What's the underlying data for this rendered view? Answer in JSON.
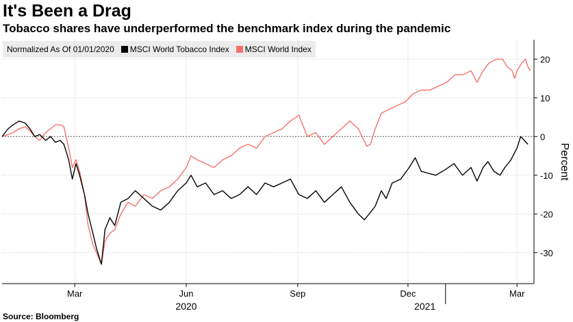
{
  "title": "It's Been a Drag",
  "subtitle": "Tobacco shares have underperformed the benchmark index during the pandemic",
  "source": "Source: Bloomberg",
  "legend": {
    "note": "Normalized As Of 01/01/2020",
    "items": [
      {
        "label": "MSCI World Tobacco Index",
        "color": "#000000"
      },
      {
        "label": "MSCI World Index",
        "color": "#f4716b"
      }
    ]
  },
  "chart_data": {
    "type": "line",
    "ylabel": "Percent",
    "ylim": [
      -38,
      25
    ],
    "yticks": [
      20,
      10,
      0,
      -10,
      -20,
      -30
    ],
    "xlim": [
      "2020-01-01",
      "2021-03-15"
    ],
    "xticks": [
      {
        "date": "2020-03-01",
        "label": "Mar"
      },
      {
        "date": "2020-06-01",
        "label": "Jun"
      },
      {
        "date": "2020-09-01",
        "label": "Sep"
      },
      {
        "date": "2020-12-01",
        "label": "Dec"
      },
      {
        "date": "2021-03-01",
        "label": "Mar"
      }
    ],
    "year_labels": [
      {
        "date": "2020-06-01",
        "label": "2020"
      },
      {
        "date": "2020-12-15",
        "label": "2021"
      }
    ],
    "zero_line": true,
    "grid": true,
    "series": [
      {
        "name": "MSCI World Tobacco Index",
        "color": "#000000",
        "points": [
          [
            "2020-01-01",
            0
          ],
          [
            "2020-01-06",
            2
          ],
          [
            "2020-01-10",
            3
          ],
          [
            "2020-01-15",
            4
          ],
          [
            "2020-01-20",
            3.5
          ],
          [
            "2020-01-24",
            2
          ],
          [
            "2020-01-28",
            0
          ],
          [
            "2020-02-01",
            0.5
          ],
          [
            "2020-02-06",
            -1
          ],
          [
            "2020-02-10",
            0
          ],
          [
            "2020-02-14",
            -1.5
          ],
          [
            "2020-02-18",
            -1
          ],
          [
            "2020-02-21",
            -2
          ],
          [
            "2020-02-25",
            -6
          ],
          [
            "2020-02-28",
            -11
          ],
          [
            "2020-03-02",
            -7
          ],
          [
            "2020-03-05",
            -10
          ],
          [
            "2020-03-09",
            -15
          ],
          [
            "2020-03-12",
            -20
          ],
          [
            "2020-03-16",
            -25
          ],
          [
            "2020-03-19",
            -29
          ],
          [
            "2020-03-23",
            -33
          ],
          [
            "2020-03-26",
            -24
          ],
          [
            "2020-03-30",
            -21
          ],
          [
            "2020-04-03",
            -23
          ],
          [
            "2020-04-08",
            -17
          ],
          [
            "2020-04-14",
            -16
          ],
          [
            "2020-04-20",
            -14
          ],
          [
            "2020-04-27",
            -16
          ],
          [
            "2020-05-04",
            -18
          ],
          [
            "2020-05-11",
            -19
          ],
          [
            "2020-05-18",
            -17
          ],
          [
            "2020-05-25",
            -14
          ],
          [
            "2020-06-01",
            -12
          ],
          [
            "2020-06-05",
            -10
          ],
          [
            "2020-06-10",
            -13
          ],
          [
            "2020-06-17",
            -12
          ],
          [
            "2020-06-24",
            -15
          ],
          [
            "2020-07-01",
            -14
          ],
          [
            "2020-07-08",
            -16
          ],
          [
            "2020-07-15",
            -15
          ],
          [
            "2020-07-22",
            -13
          ],
          [
            "2020-07-29",
            -15
          ],
          [
            "2020-08-05",
            -12
          ],
          [
            "2020-08-12",
            -13
          ],
          [
            "2020-08-19",
            -12
          ],
          [
            "2020-08-26",
            -11
          ],
          [
            "2020-09-02",
            -15
          ],
          [
            "2020-09-09",
            -16
          ],
          [
            "2020-09-16",
            -14
          ],
          [
            "2020-09-23",
            -17
          ],
          [
            "2020-09-30",
            -15
          ],
          [
            "2020-10-07",
            -13
          ],
          [
            "2020-10-14",
            -17
          ],
          [
            "2020-10-21",
            -20
          ],
          [
            "2020-10-26",
            -21.5
          ],
          [
            "2020-10-30",
            -20
          ],
          [
            "2020-11-04",
            -18
          ],
          [
            "2020-11-09",
            -14
          ],
          [
            "2020-11-13",
            -16
          ],
          [
            "2020-11-18",
            -12
          ],
          [
            "2020-11-25",
            -11
          ],
          [
            "2020-12-02",
            -8
          ],
          [
            "2020-12-07",
            -5.5
          ],
          [
            "2020-12-12",
            -9
          ],
          [
            "2020-12-18",
            -9.5
          ],
          [
            "2020-12-24",
            -10
          ],
          [
            "2021-01-01",
            -8.5
          ],
          [
            "2021-01-08",
            -7
          ],
          [
            "2021-01-15",
            -10
          ],
          [
            "2021-01-22",
            -8
          ],
          [
            "2021-01-27",
            -11.5
          ],
          [
            "2021-02-01",
            -8
          ],
          [
            "2021-02-05",
            -6.5
          ],
          [
            "2021-02-10",
            -9
          ],
          [
            "2021-02-15",
            -10
          ],
          [
            "2021-02-19",
            -8
          ],
          [
            "2021-02-24",
            -6
          ],
          [
            "2021-03-01",
            -3
          ],
          [
            "2021-03-04",
            0
          ],
          [
            "2021-03-07",
            -1
          ],
          [
            "2021-03-10",
            -2
          ]
        ]
      },
      {
        "name": "MSCI World Index",
        "color": "#f4716b",
        "points": [
          [
            "2020-01-01",
            0
          ],
          [
            "2020-01-06",
            0.5
          ],
          [
            "2020-01-10",
            1
          ],
          [
            "2020-01-15",
            2
          ],
          [
            "2020-01-20",
            2.5
          ],
          [
            "2020-01-24",
            1.5
          ],
          [
            "2020-01-28",
            0
          ],
          [
            "2020-02-01",
            -1
          ],
          [
            "2020-02-06",
            1
          ],
          [
            "2020-02-10",
            2
          ],
          [
            "2020-02-14",
            3
          ],
          [
            "2020-02-18",
            3
          ],
          [
            "2020-02-21",
            2.5
          ],
          [
            "2020-02-25",
            -3
          ],
          [
            "2020-02-28",
            -8
          ],
          [
            "2020-03-02",
            -6
          ],
          [
            "2020-03-05",
            -9
          ],
          [
            "2020-03-09",
            -15
          ],
          [
            "2020-03-12",
            -23
          ],
          [
            "2020-03-16",
            -28
          ],
          [
            "2020-03-19",
            -30
          ],
          [
            "2020-03-23",
            -33
          ],
          [
            "2020-03-26",
            -27
          ],
          [
            "2020-03-30",
            -25
          ],
          [
            "2020-04-03",
            -24
          ],
          [
            "2020-04-08",
            -20
          ],
          [
            "2020-04-14",
            -17
          ],
          [
            "2020-04-20",
            -18
          ],
          [
            "2020-04-27",
            -15
          ],
          [
            "2020-05-04",
            -16
          ],
          [
            "2020-05-11",
            -14
          ],
          [
            "2020-05-18",
            -13
          ],
          [
            "2020-05-25",
            -11
          ],
          [
            "2020-06-01",
            -8
          ],
          [
            "2020-06-05",
            -5
          ],
          [
            "2020-06-10",
            -6
          ],
          [
            "2020-06-17",
            -7
          ],
          [
            "2020-06-24",
            -8
          ],
          [
            "2020-07-01",
            -6
          ],
          [
            "2020-07-08",
            -5
          ],
          [
            "2020-07-15",
            -3
          ],
          [
            "2020-07-22",
            -2
          ],
          [
            "2020-07-29",
            -3
          ],
          [
            "2020-08-05",
            0
          ],
          [
            "2020-08-12",
            1
          ],
          [
            "2020-08-19",
            2
          ],
          [
            "2020-08-26",
            4
          ],
          [
            "2020-09-02",
            5.5
          ],
          [
            "2020-09-09",
            0
          ],
          [
            "2020-09-16",
            1
          ],
          [
            "2020-09-23",
            -2
          ],
          [
            "2020-09-30",
            0
          ],
          [
            "2020-10-07",
            2
          ],
          [
            "2020-10-14",
            4
          ],
          [
            "2020-10-21",
            2
          ],
          [
            "2020-10-28",
            -2.5
          ],
          [
            "2020-10-31",
            -2
          ],
          [
            "2020-11-04",
            2
          ],
          [
            "2020-11-09",
            6
          ],
          [
            "2020-11-15",
            7
          ],
          [
            "2020-11-22",
            8
          ],
          [
            "2020-11-29",
            9
          ],
          [
            "2020-12-05",
            11
          ],
          [
            "2020-12-12",
            12
          ],
          [
            "2020-12-19",
            12
          ],
          [
            "2020-12-26",
            13
          ],
          [
            "2021-01-02",
            14
          ],
          [
            "2021-01-09",
            16
          ],
          [
            "2021-01-16",
            16
          ],
          [
            "2021-01-22",
            17
          ],
          [
            "2021-01-27",
            14
          ],
          [
            "2021-02-01",
            17
          ],
          [
            "2021-02-06",
            19
          ],
          [
            "2021-02-12",
            20
          ],
          [
            "2021-02-17",
            20
          ],
          [
            "2021-02-21",
            18
          ],
          [
            "2021-02-25",
            17
          ],
          [
            "2021-02-27",
            15
          ],
          [
            "2021-03-01",
            17
          ],
          [
            "2021-03-05",
            19
          ],
          [
            "2021-03-08",
            20
          ],
          [
            "2021-03-10",
            18
          ],
          [
            "2021-03-12",
            17
          ]
        ]
      }
    ]
  }
}
